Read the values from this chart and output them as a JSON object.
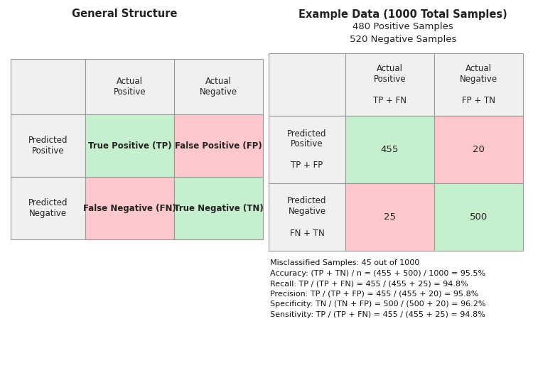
{
  "title_left": "General Structure",
  "title_right": "Example Data (1000 Total Samples)",
  "subtitle_right_1": "480 Positive Samples",
  "subtitle_right_2": "520 Negative Samples",
  "color_green": "#c6efce",
  "color_red": "#ffc7ce",
  "color_gray": "#f0f0f0",
  "color_white": "#ffffff",
  "color_border": "#999999",
  "left_matrix": {
    "header_col1": "Actual\nPositive",
    "header_col2": "Actual\nNegative",
    "row1_label": "Predicted\nPositive",
    "row2_label": "Predicted\nNegative",
    "cell_tp": "True Positive (TP)",
    "cell_fp": "False Positive (FP)",
    "cell_fn": "False Negative (FN)",
    "cell_tn": "True Negative (TN)"
  },
  "right_matrix": {
    "header_col1": "Actual\nPositive\n\nTP + FN",
    "header_col2": "Actual\nNegative\n\nFP + TN",
    "row1_label": "Predicted\nPositive\n\nTP + FP",
    "row2_label": "Predicted\nNegative\n\nFN + TN",
    "cell_tp": "455",
    "cell_fp": "20",
    "cell_fn": "25",
    "cell_tn": "500"
  },
  "stats_lines": [
    "Misclassified Samples: 45 out of 1000",
    "Accuracy: (TP + TN) / n = (455 + 500) / 1000 = 95.5%",
    "Recall: TP / (TP + FN) = 455 / (455 + 25) = 94.8%",
    "Precision: TP / (TP + FP) = 455 / (455 + 20) = 95.8%",
    "Specificity: TN / (TN + FP) = 500 / (500 + 20) = 96.2%",
    "Sensitivity: TP / (TP + FN) = 455 / (455 + 25) = 94.8%"
  ],
  "font_size_title": 10.5,
  "font_size_cell": 8.5,
  "font_size_cell_bold": 9.5,
  "font_size_stats": 8.0,
  "font_size_subtitle": 9.5
}
